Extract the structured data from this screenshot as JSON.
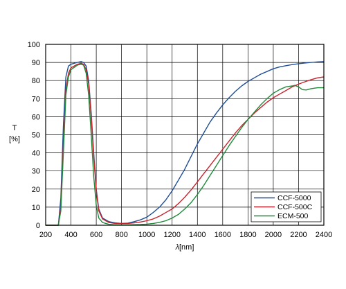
{
  "chart_data": {
    "type": "line",
    "title": "",
    "ylabel": "T",
    "ylabel_unit": "[%]",
    "xlabel_symbol": "λ",
    "xlabel_unit": "[nm]",
    "xlim": [
      200,
      2400
    ],
    "ylim": [
      0,
      100
    ],
    "x_ticks": [
      "200",
      "400",
      "600",
      "800",
      "1000",
      "1200",
      "1400",
      "1600",
      "1800",
      "2000",
      "2200",
      "2400"
    ],
    "y_ticks": [
      "0",
      "10",
      "20",
      "30",
      "40",
      "50",
      "60",
      "70",
      "80",
      "90",
      "100"
    ],
    "grid": true,
    "legend_position": "bottom-right",
    "series": [
      {
        "name": "CCF-5000",
        "color": "#1f4e96",
        "points": [
          [
            200,
            0
          ],
          [
            300,
            0
          ],
          [
            320,
            15
          ],
          [
            340,
            55
          ],
          [
            360,
            82
          ],
          [
            380,
            88
          ],
          [
            400,
            89
          ],
          [
            450,
            90
          ],
          [
            480,
            90.5
          ],
          [
            500,
            90
          ],
          [
            520,
            88
          ],
          [
            540,
            80
          ],
          [
            560,
            62
          ],
          [
            580,
            40
          ],
          [
            600,
            20
          ],
          [
            620,
            9
          ],
          [
            650,
            4
          ],
          [
            700,
            2
          ],
          [
            750,
            1.3
          ],
          [
            800,
            1
          ],
          [
            850,
            1.2
          ],
          [
            900,
            2
          ],
          [
            950,
            3
          ],
          [
            1000,
            4.5
          ],
          [
            1050,
            7
          ],
          [
            1100,
            10
          ],
          [
            1150,
            14
          ],
          [
            1200,
            19
          ],
          [
            1250,
            25
          ],
          [
            1300,
            31
          ],
          [
            1350,
            38
          ],
          [
            1400,
            45
          ],
          [
            1450,
            51
          ],
          [
            1500,
            57
          ],
          [
            1550,
            62
          ],
          [
            1600,
            66.5
          ],
          [
            1650,
            70.5
          ],
          [
            1700,
            74
          ],
          [
            1750,
            77
          ],
          [
            1800,
            79.5
          ],
          [
            1850,
            81.5
          ],
          [
            1900,
            83.5
          ],
          [
            1950,
            85
          ],
          [
            2000,
            86.5
          ],
          [
            2050,
            87.5
          ],
          [
            2100,
            88.2
          ],
          [
            2150,
            88.8
          ],
          [
            2200,
            89.3
          ],
          [
            2250,
            89.7
          ],
          [
            2300,
            90
          ],
          [
            2350,
            90.3
          ],
          [
            2400,
            90.5
          ]
        ]
      },
      {
        "name": "CCF-500C",
        "color": "#c8222c",
        "points": [
          [
            200,
            0
          ],
          [
            300,
            0
          ],
          [
            320,
            10
          ],
          [
            340,
            45
          ],
          [
            360,
            75
          ],
          [
            380,
            84
          ],
          [
            400,
            87
          ],
          [
            450,
            89
          ],
          [
            480,
            89.5
          ],
          [
            500,
            89
          ],
          [
            520,
            86
          ],
          [
            540,
            78
          ],
          [
            560,
            60
          ],
          [
            580,
            38
          ],
          [
            600,
            19
          ],
          [
            620,
            8
          ],
          [
            650,
            3.5
          ],
          [
            700,
            1.5
          ],
          [
            750,
            1
          ],
          [
            800,
            1
          ],
          [
            850,
            1
          ],
          [
            900,
            1.3
          ],
          [
            950,
            1.8
          ],
          [
            1000,
            2.5
          ],
          [
            1050,
            3.5
          ],
          [
            1100,
            5
          ],
          [
            1150,
            7
          ],
          [
            1200,
            9
          ],
          [
            1250,
            12
          ],
          [
            1300,
            15.5
          ],
          [
            1350,
            19.5
          ],
          [
            1400,
            24
          ],
          [
            1450,
            28.5
          ],
          [
            1500,
            33
          ],
          [
            1550,
            37.5
          ],
          [
            1600,
            42
          ],
          [
            1650,
            46.5
          ],
          [
            1700,
            51
          ],
          [
            1750,
            55
          ],
          [
            1800,
            58.5
          ],
          [
            1850,
            62
          ],
          [
            1900,
            65
          ],
          [
            1950,
            68
          ],
          [
            2000,
            70.5
          ],
          [
            2050,
            72.5
          ],
          [
            2100,
            74.5
          ],
          [
            2150,
            76.5
          ],
          [
            2200,
            78
          ],
          [
            2250,
            79.3
          ],
          [
            2300,
            80.5
          ],
          [
            2350,
            81.5
          ],
          [
            2400,
            82
          ]
        ]
      },
      {
        "name": "ECM-500",
        "color": "#1f8a3a",
        "points": [
          [
            200,
            0
          ],
          [
            300,
            0
          ],
          [
            320,
            8
          ],
          [
            340,
            40
          ],
          [
            360,
            72
          ],
          [
            380,
            82
          ],
          [
            400,
            86
          ],
          [
            450,
            88.5
          ],
          [
            480,
            89
          ],
          [
            500,
            88.5
          ],
          [
            520,
            84
          ],
          [
            540,
            72
          ],
          [
            560,
            50
          ],
          [
            580,
            27
          ],
          [
            600,
            11
          ],
          [
            620,
            4
          ],
          [
            650,
            1.5
          ],
          [
            700,
            0.5
          ],
          [
            750,
            0.2
          ],
          [
            800,
            0.2
          ],
          [
            850,
            0.2
          ],
          [
            900,
            0.3
          ],
          [
            950,
            0.4
          ],
          [
            1000,
            0.6
          ],
          [
            1050,
            1
          ],
          [
            1100,
            1.6
          ],
          [
            1150,
            2.5
          ],
          [
            1200,
            4
          ],
          [
            1250,
            6
          ],
          [
            1300,
            9
          ],
          [
            1350,
            12.5
          ],
          [
            1400,
            17
          ],
          [
            1450,
            22
          ],
          [
            1500,
            27.5
          ],
          [
            1550,
            33
          ],
          [
            1600,
            38.5
          ],
          [
            1650,
            44
          ],
          [
            1700,
            49
          ],
          [
            1750,
            54
          ],
          [
            1800,
            58.5
          ],
          [
            1850,
            62.5
          ],
          [
            1900,
            66.5
          ],
          [
            1950,
            70
          ],
          [
            2000,
            73
          ],
          [
            2050,
            75
          ],
          [
            2100,
            76.5
          ],
          [
            2150,
            77
          ],
          [
            2170,
            77.3
          ],
          [
            2200,
            76.5
          ],
          [
            2230,
            75
          ],
          [
            2260,
            74.8
          ],
          [
            2300,
            75.5
          ],
          [
            2350,
            76
          ],
          [
            2400,
            76
          ]
        ]
      }
    ]
  }
}
